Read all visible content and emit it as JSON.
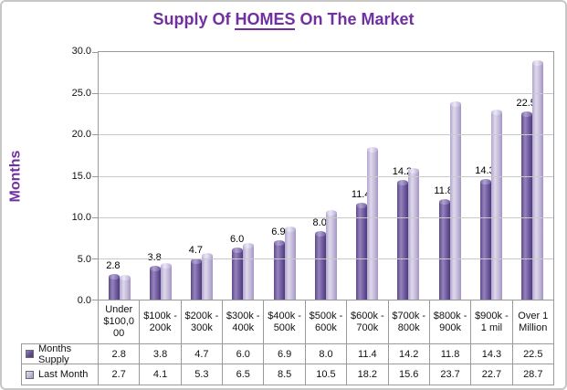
{
  "window": {
    "background": "#ffffff",
    "border_color": "#c7c7c7"
  },
  "title": {
    "prefix": "Supply Of ",
    "highlight": "HOMES",
    "suffix": " On The Market",
    "color": "#7030a0"
  },
  "y_axis": {
    "label": "Months",
    "tick_labels": [
      "30.0",
      "25.0",
      "20.0",
      "15.0",
      "10.0",
      "5.0",
      "0.0"
    ]
  },
  "chart_data": {
    "type": "bar",
    "title": "Supply Of HOMES On The Market",
    "xlabel": "",
    "ylabel": "Months",
    "ylim": [
      0,
      30
    ],
    "y_tick_step": 5,
    "grid": true,
    "legend_position": "left-of-data-table",
    "data_table_shown": true,
    "categories": [
      "Under $100,000",
      "$100k - 200k",
      "$200k - 300k",
      "$300k - 400k",
      "$400k - 500k",
      "$500k - 600k",
      "$600k - 700k",
      "$700k - 800k",
      "$800k - 900k",
      "$900k - 1 mil",
      "Over 1 Million"
    ],
    "categories_display": [
      "Under\n$100,0\n00",
      "$100k -\n200k",
      "$200k -\n300k",
      "$300k -\n400k",
      "$400k -\n500k",
      "$500k -\n600k",
      "$600k -\n700k",
      "$700k -\n800k",
      "$800k -\n900k",
      "$900k -\n1 mil",
      "Over 1\nMillion"
    ],
    "series": [
      {
        "name": "Months Supply",
        "color": "#5e4a8c",
        "data_labels": true,
        "values": [
          2.8,
          3.8,
          4.7,
          6.0,
          6.9,
          8.0,
          11.4,
          14.2,
          11.8,
          14.3,
          22.5
        ]
      },
      {
        "name": "Last Month",
        "color": "#c0b5d8",
        "data_labels": false,
        "values": [
          2.7,
          4.1,
          5.3,
          6.5,
          8.5,
          10.5,
          18.2,
          15.6,
          23.7,
          22.7,
          28.7
        ]
      }
    ]
  }
}
